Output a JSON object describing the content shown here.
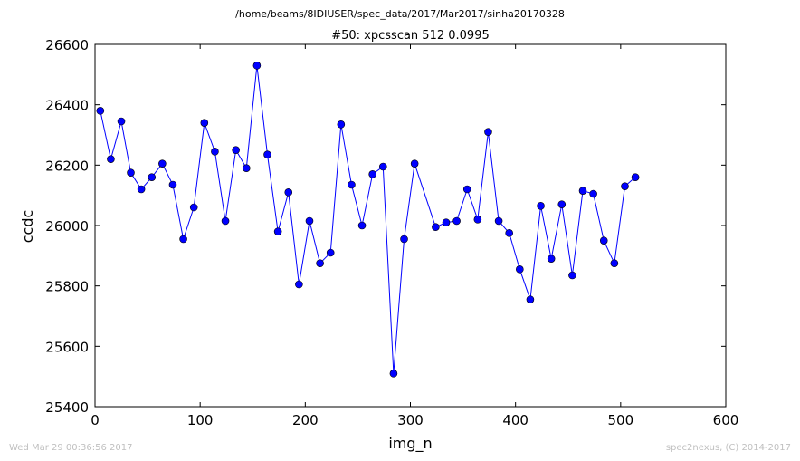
{
  "header": {
    "file_path": "/home/beams/8IDIUSER/spec_data/2017/Mar2017/sinha20170328"
  },
  "footer": {
    "timestamp": "Wed Mar 29 00:36:56 2017",
    "credit": "spec2nexus, (C) 2014-2017"
  },
  "chart_data": {
    "type": "line",
    "title": "#50: xpcsscan 512 0.0995",
    "xlabel": "img_n",
    "ylabel": "ccdc",
    "xlim": [
      0,
      600
    ],
    "ylim": [
      25400,
      26600
    ],
    "xticks": [
      "0",
      "100",
      "200",
      "300",
      "400",
      "500",
      "600"
    ],
    "yticks": [
      "25400",
      "25600",
      "25800",
      "26000",
      "26200",
      "26400",
      "26600"
    ],
    "grid": false,
    "marker": "circle",
    "color": "#0000ff",
    "series": [
      {
        "x": [
          5,
          15,
          25,
          34,
          44,
          54,
          64,
          74,
          84,
          94,
          104,
          114,
          124,
          134,
          144,
          154,
          164,
          174,
          184,
          194,
          204,
          214,
          224,
          234,
          244,
          254,
          264,
          274,
          284,
          294,
          304,
          324,
          334,
          344,
          354,
          364,
          374,
          384,
          394,
          404,
          414,
          424,
          434,
          444,
          454,
          464,
          474,
          484,
          494,
          504,
          514
        ],
        "y": [
          26380,
          26220,
          26345,
          26175,
          26120,
          26160,
          26205,
          26135,
          25955,
          26060,
          26340,
          26245,
          26015,
          26250,
          26190,
          26530,
          26235,
          25980,
          26110,
          25805,
          26015,
          25875,
          25910,
          26335,
          26135,
          26000,
          26170,
          26195,
          25510,
          25955,
          26205,
          25995,
          26010,
          26015,
          26120,
          26020,
          26310,
          26015,
          25975,
          25855,
          25755,
          26065,
          25890,
          26070,
          25835,
          26115,
          26105,
          25950,
          25875,
          26130,
          26160
        ]
      }
    ]
  }
}
